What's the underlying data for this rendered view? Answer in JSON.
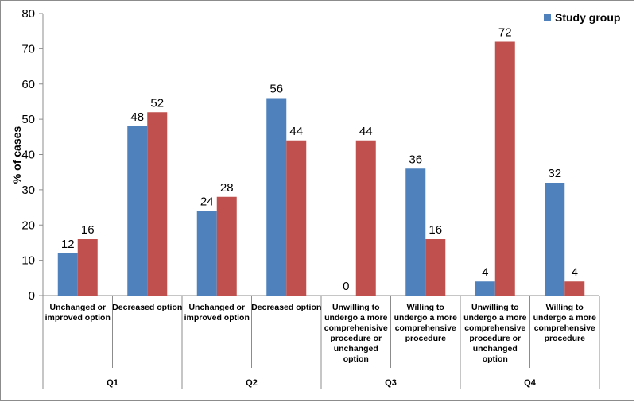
{
  "chart_data": {
    "type": "bar",
    "ylabel": "% of cases",
    "ylim": [
      0,
      80
    ],
    "yticks": [
      "0",
      "10",
      "20",
      "30",
      "40",
      "50",
      "60",
      "70",
      "80"
    ],
    "grid": false,
    "legend_position": "top-right",
    "categories": [
      "Unchanged or improved option",
      "Decreased option",
      "Unchanged or improved option",
      "Decreased option",
      "Unwilling to undergo a more comprehenisive procedure or unchanged option",
      "Willing to undergo a more comprehensive procedure",
      "Unwilling to undergo a more comprehensive procedure or unchanged option",
      "Willing to undergo a more comprehensive procedure"
    ],
    "category_lines": [
      [
        "Unchanged or",
        "improved option"
      ],
      [
        "Decreased option"
      ],
      [
        "Unchanged or",
        "improved option"
      ],
      [
        "Decreased option"
      ],
      [
        "Unwilling to",
        "undergo a more",
        "comprehenisive",
        "procedure or",
        "unchanged",
        "option"
      ],
      [
        "Willing to",
        "undergo a more",
        "comprehensive",
        "procedure"
      ],
      [
        "Unwilling to",
        "undergo a more",
        "comprehensive",
        "procedure or",
        "unchanged",
        "option"
      ],
      [
        "Willing to",
        "undergo a more",
        "comprehensive",
        "procedure"
      ]
    ],
    "groups": [
      {
        "label": "Q1",
        "span": [
          0,
          1
        ]
      },
      {
        "label": "Q2",
        "span": [
          2,
          3
        ]
      },
      {
        "label": "Q3",
        "span": [
          4,
          5
        ]
      },
      {
        "label": "Q4",
        "span": [
          6,
          7
        ]
      }
    ],
    "series": [
      {
        "name": "Study group",
        "color": "#4f81bd",
        "values": [
          12,
          48,
          24,
          56,
          0,
          36,
          4,
          32
        ]
      },
      {
        "name": "",
        "color": "#c0504d",
        "values": [
          16,
          52,
          28,
          44,
          44,
          16,
          72,
          4
        ]
      }
    ]
  }
}
